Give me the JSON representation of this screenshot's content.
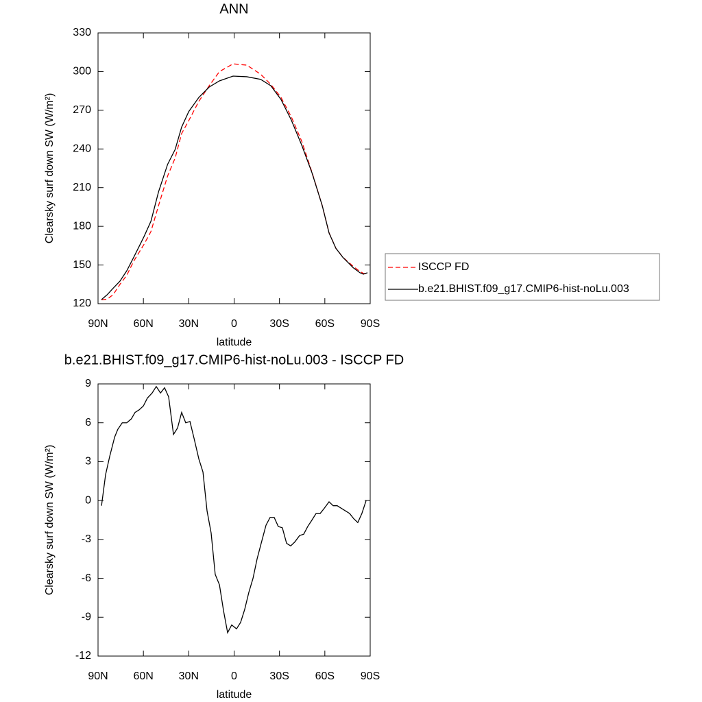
{
  "chart_data": [
    {
      "type": "line",
      "title": "ANN",
      "x_label": "latitude",
      "y_label": "Clearsky surf down SW (W/m²)",
      "xlim": [
        90,
        -90
      ],
      "xticks": [
        {
          "value": 90,
          "label": "90N"
        },
        {
          "value": 60,
          "label": "60N"
        },
        {
          "value": 30,
          "label": "30N"
        },
        0,
        {
          "value": -30,
          "label": "30S"
        },
        {
          "value": -60,
          "label": "60S"
        },
        {
          "value": -90,
          "label": "90S"
        }
      ],
      "ylim": [
        120,
        330
      ],
      "yticks": [
        120,
        150,
        180,
        210,
        240,
        270,
        300,
        330
      ],
      "x": [
        87.7,
        84,
        80,
        75.5,
        71,
        66.4,
        59.6,
        55,
        50,
        44,
        39,
        34.7,
        30,
        23.3,
        16.5,
        9.7,
        0.7,
        -8.4,
        -17.5,
        -24.3,
        -31,
        -37.8,
        -44.7,
        -51.5,
        -58.3,
        -62.8,
        -67.3,
        -71.9,
        -78.7,
        -83.2,
        -85.5,
        -88.2
      ],
      "series": [
        {
          "name": "ISCCP FD",
          "color": "#ff0000",
          "dash": true,
          "values": [
            123,
            123.5,
            127,
            135,
            142,
            153,
            166,
            176,
            196,
            219,
            233,
            252,
            262,
            277,
            289,
            300,
            306,
            305,
            298,
            290,
            280,
            265,
            246,
            222,
            196,
            175,
            163,
            156,
            149,
            145,
            143.5,
            143
          ]
        },
        {
          "name": "b.e21.BHIST.f09_g17.CMIP6-hist-noLu.003",
          "color": "#000000",
          "dash": false,
          "values": [
            123.2,
            126.9,
            132,
            137.5,
            145.5,
            156,
            172,
            184,
            206.7,
            228,
            239.6,
            257,
            269,
            280,
            288,
            292.8,
            296.5,
            296,
            294,
            289,
            278.4,
            262.5,
            243,
            221.5,
            196,
            174.8,
            163,
            156,
            148,
            144,
            142.9,
            144
          ]
        }
      ]
    },
    {
      "type": "line",
      "title": "b.e21.BHIST.f09_g17.CMIP6-hist-noLu.003 - ISCCP FD",
      "x_label": "latitude",
      "y_label": "Clearsky surf down SW (W/m²)",
      "xlim": [
        90,
        -90
      ],
      "xticks": [
        {
          "value": 90,
          "label": "90N"
        },
        {
          "value": 60,
          "label": "60N"
        },
        {
          "value": 30,
          "label": "30N"
        },
        0,
        {
          "value": -30,
          "label": "30S"
        },
        {
          "value": -60,
          "label": "60S"
        },
        {
          "value": -90,
          "label": "90S"
        }
      ],
      "ylim": [
        -12,
        9
      ],
      "yticks": [
        -12,
        -9,
        -6,
        -3,
        0,
        3,
        6,
        9
      ],
      "x": [
        87.7,
        85,
        82.3,
        79,
        76.9,
        74,
        71,
        68,
        65.5,
        62.8,
        60,
        57.4,
        54.2,
        51.5,
        48.7,
        46,
        43.3,
        40.1,
        37.4,
        34.7,
        32,
        29.2,
        26.5,
        23.3,
        20.6,
        17.9,
        15.2,
        12.5,
        9.7,
        7,
        4.3,
        1.6,
        -1.6,
        -4.3,
        -7,
        -9.7,
        -12.5,
        -15.2,
        -17.9,
        -21.1,
        -23.8,
        -26.5,
        -29.2,
        -31.9,
        -34.7,
        -37.4,
        -40.1,
        -43.3,
        -46,
        -48.7,
        -51.5,
        -54.2,
        -56.9,
        -59.6,
        -62.8,
        -65.5,
        -68.2,
        -70.9,
        -73.7,
        -76.4,
        -79.1,
        -81.8,
        -84.5,
        -87.3
      ],
      "series": [
        {
          "color": "#000000",
          "dash": false,
          "values": [
            -0.4,
            2.0,
            3.4,
            4.9,
            5.5,
            6.0,
            6.0,
            6.3,
            6.8,
            7.0,
            7.3,
            7.9,
            8.3,
            8.8,
            8.3,
            8.7,
            8.0,
            5.1,
            5.6,
            6.8,
            6.0,
            6.1,
            4.8,
            3.2,
            2.2,
            -0.8,
            -2.5,
            -5.7,
            -6.5,
            -8.5,
            -10.2,
            -9.6,
            -9.9,
            -9.4,
            -8.4,
            -7.1,
            -6.0,
            -4.5,
            -3.3,
            -1.9,
            -1.3,
            -1.3,
            -2.0,
            -2.1,
            -3.3,
            -3.5,
            -3.2,
            -2.7,
            -2.6,
            -2.0,
            -1.5,
            -1.0,
            -1.0,
            -0.6,
            -0.1,
            -0.4,
            -0.4,
            -0.6,
            -0.8,
            -1.0,
            -1.4,
            -1.7,
            -1.0,
            0.0
          ]
        }
      ]
    }
  ]
}
